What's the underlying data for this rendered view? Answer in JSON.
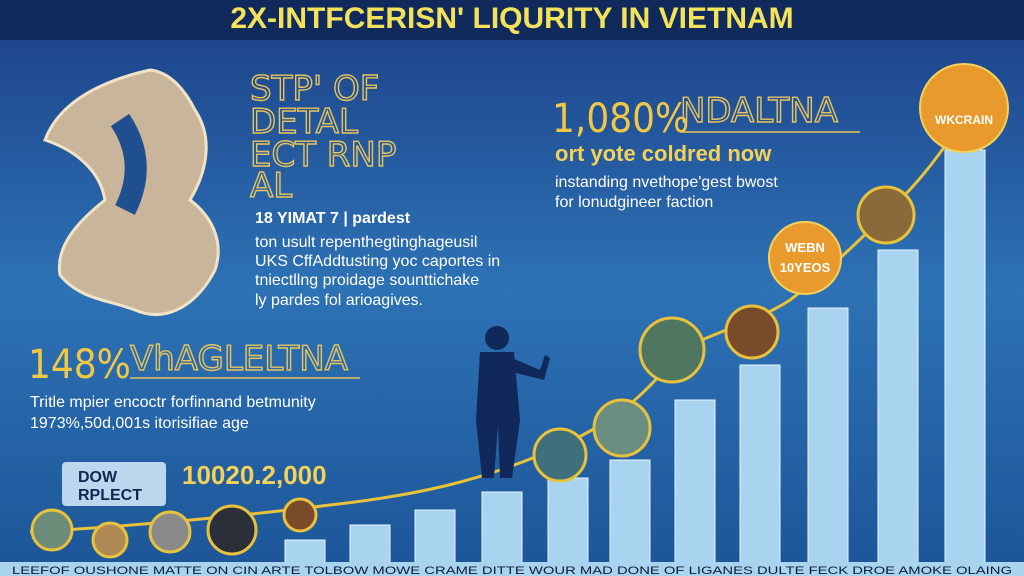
{
  "header": {
    "title": "2X-INTFCERISN' LIQURITY IN VIETNAM"
  },
  "left_block": {
    "heading_lines": [
      "STP' OF",
      "DETAL",
      "ECT RNP",
      "AL"
    ],
    "subheading": "18 YIMAT 7 | pardest",
    "paragraph_lines": [
      "ton usult repenthegtinghageusil",
      "UKS CffAddtusting yoc caportes in",
      "tniectllng proidage sounttichake",
      "ly pardes fol arioagives."
    ]
  },
  "stat_left": {
    "figure": "148%",
    "label": "VhAGLELTNA",
    "lines": [
      "Tritle mpier encoctr forfinnand betmunity",
      "1973%,50d,001s itorisifiae age"
    ]
  },
  "logo": {
    "lines": [
      "DOW",
      "RPLECT"
    ]
  },
  "mid_figure": "10020.2,000",
  "stat_right": {
    "figure": "1,080%",
    "label": "NDALTNA",
    "subheading": "ort yote coldred now",
    "lines": [
      "instanding nvethope'gest bwost",
      "for lonudgineer faction"
    ]
  },
  "badges": [
    {
      "lines": [
        "WEBN",
        "10YEOS"
      ]
    },
    {
      "lines": [
        "WKCRAIN"
      ]
    }
  ],
  "footer": "LEEFOF OUSHONE MATTE ON CIN ARTE TOLBOW MOWE CRAME DITTE WOUR MAD DONE OF LIGANES DULTE FECK DROE AMOKE OLAING"
}
